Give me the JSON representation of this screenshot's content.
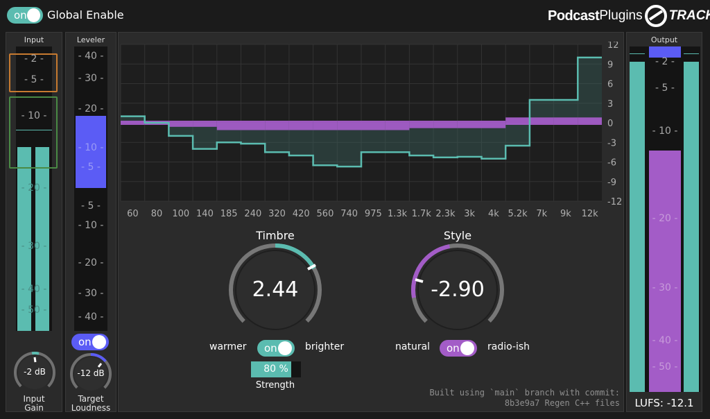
{
  "header": {
    "global_enable_toggle": "on",
    "global_enable_label": "Global Enable",
    "logo_text_bold": "Podcast",
    "logo_text_light": "Plugins",
    "logo_track": "TRACK"
  },
  "input": {
    "title": "Input",
    "scale": [
      "- 2 -",
      "- 5 -",
      "- 10 -",
      "- 20 -",
      "- 30 -",
      "- 40 -",
      "- 50 -"
    ],
    "knob_value": "-2 dB",
    "knob_level": 0.5,
    "label": "Input\nGain",
    "meter_level": 0.72
  },
  "leveler": {
    "title": "Leveler",
    "scale": [
      "- 40 -",
      "- 30 -",
      "- 20 -",
      "- 10 -",
      "- 5 -",
      "- 5 -",
      "- 10 -",
      "- 20 -",
      "- 30 -",
      "- 40 -"
    ],
    "toggle": "on",
    "knob_value": "-12 dB",
    "label": "Target\nLoudness"
  },
  "eq": {
    "y_ticks": [
      "12",
      "9",
      "6",
      "3",
      "0",
      "-3",
      "-6",
      "-9",
      "-12"
    ],
    "x_ticks": [
      "60",
      "80",
      "100",
      "140",
      "185",
      "240",
      "320",
      "420",
      "560",
      "740",
      "975",
      "1.3k",
      "1.7k",
      "2.3k",
      "3k",
      "4k",
      "5.2k",
      "7k",
      "9k",
      "12k"
    ]
  },
  "chart_data": {
    "type": "line",
    "x": [
      "60",
      "80",
      "100",
      "140",
      "185",
      "240",
      "320",
      "420",
      "560",
      "740",
      "975",
      "1.3k",
      "1.7k",
      "2.3k",
      "3k",
      "4k",
      "5.2k",
      "7k",
      "9k",
      "12k"
    ],
    "ylim": [
      -12,
      12
    ],
    "series": [
      {
        "values": [
          1.0,
          0.0,
          -2.0,
          -4.0,
          -3.0,
          -3.2,
          -4.5,
          -5.0,
          -6.5,
          -6.7,
          -4.5,
          -4.5,
          -5.0,
          -5.3,
          -5.2,
          -5.5,
          -3.5,
          3.5,
          3.5,
          10.0
        ]
      },
      {
        "values": [
          0,
          0,
          -0.3,
          -0.3,
          -0.8,
          -0.8,
          -0.8,
          -0.8,
          -0.8,
          -0.8,
          -0.8,
          -0.8,
          -0.5,
          -0.5,
          -0.5,
          -0.5,
          0.5,
          0.5,
          0.5,
          0.5
        ]
      }
    ]
  },
  "timbre": {
    "title": "Timbre",
    "value": "2.44",
    "left_label": "warmer",
    "right_label": "brighter",
    "toggle": "on",
    "strength": "80 %",
    "strength_level": 0.8,
    "strength_label": "Strength"
  },
  "style": {
    "title": "Style",
    "value": "-2.90",
    "left_label": "natural",
    "right_label": "radio-ish",
    "toggle": "on"
  },
  "build_info": {
    "line1": "Built using `main` branch with commit:",
    "line2": "8b3e9a7 Regen C++ files"
  },
  "output": {
    "title": "Output",
    "scale": [
      "- 2 -",
      "- 5 -",
      "- 10 -",
      "- 20 -",
      "- 30 -",
      "- 40 -",
      "- 50 -"
    ],
    "lufs": "LUFS: -12.1"
  },
  "colors": {
    "teal": "#5bbcb0",
    "purple": "#a35cc7",
    "blue": "#5b5cf5"
  }
}
